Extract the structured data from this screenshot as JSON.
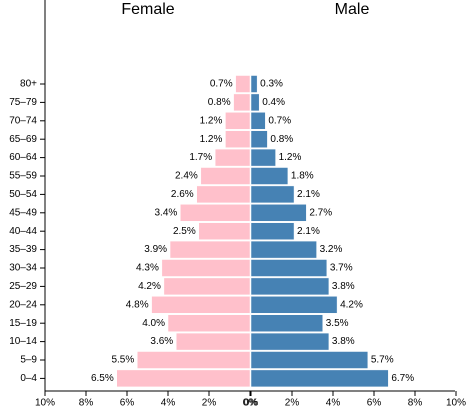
{
  "chart_data": {
    "type": "pyramid",
    "categories": [
      "80+",
      "75–79",
      "70–74",
      "65–69",
      "60–64",
      "55–59",
      "50–54",
      "45–49",
      "40–44",
      "35–39",
      "30–34",
      "25–29",
      "20–24",
      "15–19",
      "10–14",
      "5–9",
      "0–4"
    ],
    "series": [
      {
        "name": "Female",
        "color": "#ffc0cb",
        "side": "left",
        "values": [
          0.7,
          0.8,
          1.2,
          1.2,
          1.7,
          2.4,
          2.6,
          3.4,
          2.5,
          3.9,
          4.3,
          4.2,
          4.8,
          4.0,
          3.6,
          5.5,
          6.5
        ],
        "value_labels": [
          "0.7%",
          "0.8%",
          "1.2%",
          "1.2%",
          "1.7%",
          "2.4%",
          "2.6%",
          "3.4%",
          "2.5%",
          "3.9%",
          "4.3%",
          "4.2%",
          "4.8%",
          "4.0%",
          "3.6%",
          "5.5%",
          "6.5%"
        ]
      },
      {
        "name": "Male",
        "color": "#4682b4",
        "side": "right",
        "values": [
          0.3,
          0.4,
          0.7,
          0.8,
          1.2,
          1.8,
          2.1,
          2.7,
          2.1,
          3.2,
          3.7,
          3.8,
          4.2,
          3.5,
          3.8,
          5.7,
          6.7
        ],
        "value_labels": [
          "0.3%",
          "0.4%",
          "0.7%",
          "0.8%",
          "1.2%",
          "1.8%",
          "2.1%",
          "2.7%",
          "2.1%",
          "3.2%",
          "3.7%",
          "3.8%",
          "4.2%",
          "3.5%",
          "3.8%",
          "5.7%",
          "6.7%"
        ]
      }
    ],
    "xlim": [
      0,
      10
    ],
    "xticks": [
      {
        "value": 0,
        "label": "0%"
      },
      {
        "value": 2,
        "label": "2%"
      },
      {
        "value": 4,
        "label": "4%"
      },
      {
        "value": 6,
        "label": "6%"
      },
      {
        "value": 8,
        "label": "8%"
      },
      {
        "value": 10,
        "label": "10%"
      }
    ]
  }
}
